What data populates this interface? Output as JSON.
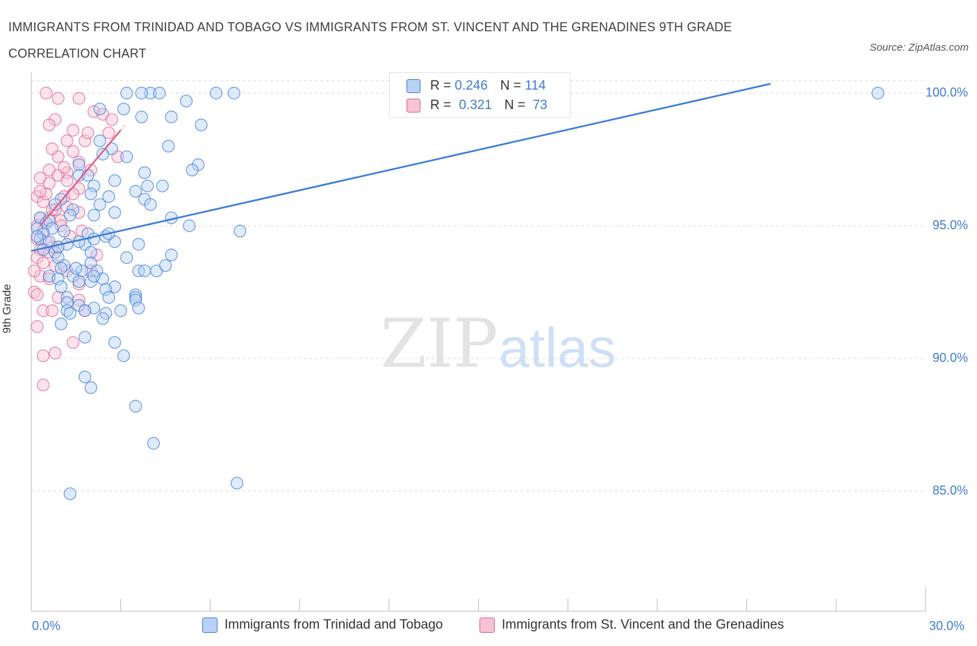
{
  "title": "IMMIGRANTS FROM TRINIDAD AND TOBAGO VS IMMIGRANTS FROM ST. VINCENT AND THE GRENADINES 9TH GRADE CORRELATION CHART",
  "source": "Source: ZipAtlas.com",
  "watermark": {
    "zip": "ZIP",
    "atlas": "atlas"
  },
  "colors": {
    "blue": "#3d7dd8",
    "blue_fill": "#b9d1f4",
    "pink": "#e0628c",
    "pink_fill": "#f6c4d4",
    "grid": "#d8d8d8"
  },
  "legend": {
    "rows": [
      {
        "r_label": "R = ",
        "r_value": "0.246",
        "n_label": "N = ",
        "n_value": "114"
      },
      {
        "r_label": "R = ",
        "r_value": "0.321",
        "n_label": "N = ",
        "n_value": " 73"
      }
    ]
  },
  "chart_data": {
    "type": "scatter",
    "title": "IMMIGRANTS FROM TRINIDAD AND TOBAGO VS IMMIGRANTS FROM ST. VINCENT AND THE GRENADINES 9TH GRADE CORRELATION CHART",
    "xlabel": "",
    "ylabel": "9th Grade",
    "xlim": [
      0,
      30
    ],
    "ylim": [
      80,
      100.4
    ],
    "x_tick_labels": [
      "0.0%",
      "30.0%"
    ],
    "y_ticks": [
      85,
      90,
      95,
      100
    ],
    "y_tick_labels": [
      "85.0%",
      "90.0%",
      "95.0%",
      "100.0%"
    ],
    "series": [
      {
        "name": "Immigrants from Trinidad and Tobago",
        "R": 0.246,
        "N": 114,
        "trend": {
          "x0": 0,
          "y0": 94.05,
          "x1": 24.8,
          "y1": 100.35
        },
        "points": [
          [
            3.2,
            100
          ],
          [
            4.0,
            100
          ],
          [
            4.3,
            100
          ],
          [
            6.2,
            100
          ],
          [
            6.8,
            100
          ],
          [
            28.4,
            100
          ],
          [
            2.3,
            99.4
          ],
          [
            3.1,
            99.4
          ],
          [
            3.7,
            99.1
          ],
          [
            4.7,
            99.1
          ],
          [
            5.2,
            99.7
          ],
          [
            3.7,
            100
          ],
          [
            2.3,
            98.2
          ],
          [
            2.7,
            97.9
          ],
          [
            2.4,
            97.7
          ],
          [
            3.2,
            97.6
          ],
          [
            5.6,
            97.3
          ],
          [
            1.6,
            97.3
          ],
          [
            1.6,
            96.9
          ],
          [
            1.9,
            96.9
          ],
          [
            3.8,
            97.0
          ],
          [
            2.1,
            96.5
          ],
          [
            2.8,
            96.7
          ],
          [
            4.4,
            96.5
          ],
          [
            3.5,
            96.3
          ],
          [
            2.0,
            96.2
          ],
          [
            2.6,
            96.1
          ],
          [
            3.8,
            96.0
          ],
          [
            4.0,
            95.8
          ],
          [
            1.0,
            96.0
          ],
          [
            0.8,
            95.8
          ],
          [
            1.4,
            95.6
          ],
          [
            1.3,
            95.4
          ],
          [
            2.1,
            95.4
          ],
          [
            2.8,
            95.5
          ],
          [
            4.7,
            95.3
          ],
          [
            5.3,
            95.0
          ],
          [
            7.0,
            94.8
          ],
          [
            0.3,
            95.3
          ],
          [
            0.5,
            95.1
          ],
          [
            0.6,
            95.2
          ],
          [
            0.2,
            94.9
          ],
          [
            0.7,
            94.9
          ],
          [
            0.4,
            94.7
          ],
          [
            1.1,
            94.8
          ],
          [
            1.9,
            94.7
          ],
          [
            2.5,
            94.6
          ],
          [
            2.8,
            94.4
          ],
          [
            3.6,
            94.3
          ],
          [
            0.3,
            94.5
          ],
          [
            0.6,
            94.4
          ],
          [
            1.2,
            94.3
          ],
          [
            1.8,
            94.3
          ],
          [
            2.1,
            94.5
          ],
          [
            0.4,
            94.1
          ],
          [
            0.8,
            94.0
          ],
          [
            0.9,
            93.8
          ],
          [
            1.6,
            94.4
          ],
          [
            2.0,
            94.0
          ],
          [
            3.2,
            93.8
          ],
          [
            4.7,
            93.9
          ],
          [
            2.0,
            93.6
          ],
          [
            1.1,
            93.5
          ],
          [
            1.0,
            93.4
          ],
          [
            1.7,
            93.3
          ],
          [
            2.2,
            93.3
          ],
          [
            2.4,
            93.0
          ],
          [
            3.6,
            93.3
          ],
          [
            3.8,
            93.3
          ],
          [
            4.2,
            93.3
          ],
          [
            4.5,
            93.5
          ],
          [
            0.6,
            93.1
          ],
          [
            0.9,
            93.0
          ],
          [
            1.4,
            93.1
          ],
          [
            1.6,
            92.9
          ],
          [
            2.0,
            92.9
          ],
          [
            2.8,
            92.7
          ],
          [
            2.5,
            92.6
          ],
          [
            3.5,
            92.4
          ],
          [
            3.5,
            92.3
          ],
          [
            1.2,
            92.3
          ],
          [
            1.2,
            92.1
          ],
          [
            1.6,
            92.0
          ],
          [
            2.1,
            91.9
          ],
          [
            3.5,
            92.2
          ],
          [
            1.2,
            91.8
          ],
          [
            1.3,
            91.7
          ],
          [
            1.8,
            91.8
          ],
          [
            2.5,
            91.7
          ],
          [
            3.0,
            91.8
          ],
          [
            3.6,
            91.9
          ],
          [
            1.0,
            91.3
          ],
          [
            2.4,
            91.5
          ],
          [
            1.8,
            90.8
          ],
          [
            2.8,
            90.6
          ],
          [
            3.1,
            90.1
          ],
          [
            1.8,
            89.3
          ],
          [
            2.0,
            88.9
          ],
          [
            3.5,
            88.2
          ],
          [
            4.1,
            86.8
          ],
          [
            1.3,
            84.9
          ],
          [
            6.9,
            85.3
          ],
          [
            5.7,
            98.8
          ],
          [
            4.6,
            98.0
          ],
          [
            5.4,
            97.1
          ],
          [
            3.9,
            96.5
          ],
          [
            2.6,
            94.7
          ],
          [
            1.5,
            93.4
          ],
          [
            2.6,
            92.3
          ],
          [
            2.1,
            93.1
          ],
          [
            0.9,
            94.2
          ],
          [
            0.2,
            94.6
          ],
          [
            1.0,
            92.7
          ],
          [
            2.3,
            95.8
          ]
        ]
      },
      {
        "name": "Immigrants from St. Vincent and the Grenadines",
        "R": 0.321,
        "N": 73,
        "trend": {
          "x0": 0.3,
          "y0": 95.0,
          "x1": 3.0,
          "y1": 98.6
        },
        "points": [
          [
            0.5,
            100
          ],
          [
            0.9,
            99.8
          ],
          [
            1.6,
            99.8
          ],
          [
            2.1,
            99.3
          ],
          [
            2.4,
            99.2
          ],
          [
            0.8,
            99.0
          ],
          [
            2.7,
            99.0
          ],
          [
            0.6,
            98.8
          ],
          [
            1.4,
            98.6
          ],
          [
            1.2,
            98.2
          ],
          [
            1.8,
            98.2
          ],
          [
            0.7,
            97.9
          ],
          [
            1.4,
            97.8
          ],
          [
            0.9,
            97.6
          ],
          [
            1.6,
            97.4
          ],
          [
            0.6,
            97.1
          ],
          [
            1.2,
            97.0
          ],
          [
            0.9,
            96.9
          ],
          [
            1.2,
            96.7
          ],
          [
            0.3,
            96.8
          ],
          [
            0.6,
            96.6
          ],
          [
            1.6,
            96.4
          ],
          [
            0.2,
            96.1
          ],
          [
            1.1,
            96.1
          ],
          [
            0.4,
            95.9
          ],
          [
            0.8,
            95.6
          ],
          [
            1.2,
            95.7
          ],
          [
            1.6,
            95.5
          ],
          [
            0.3,
            95.3
          ],
          [
            0.6,
            95.3
          ],
          [
            1.0,
            95.2
          ],
          [
            0.2,
            95.0
          ],
          [
            0.4,
            94.8
          ],
          [
            1.7,
            94.8
          ],
          [
            0.2,
            94.5
          ],
          [
            0.5,
            94.4
          ],
          [
            0.9,
            94.2
          ],
          [
            0.3,
            94.1
          ],
          [
            0.6,
            94.0
          ],
          [
            0.2,
            93.8
          ],
          [
            0.4,
            93.6
          ],
          [
            0.8,
            93.5
          ],
          [
            1.2,
            93.3
          ],
          [
            2.0,
            93.3
          ],
          [
            0.3,
            93.1
          ],
          [
            0.6,
            93.0
          ],
          [
            1.6,
            92.8
          ],
          [
            0.1,
            92.5
          ],
          [
            0.2,
            92.4
          ],
          [
            0.9,
            92.3
          ],
          [
            1.6,
            92.2
          ],
          [
            0.4,
            91.8
          ],
          [
            0.7,
            91.8
          ],
          [
            1.8,
            91.8
          ],
          [
            0.2,
            91.2
          ],
          [
            1.4,
            90.6
          ],
          [
            0.4,
            90.1
          ],
          [
            0.8,
            90.2
          ],
          [
            0.4,
            89.0
          ],
          [
            2.6,
            98.5
          ],
          [
            2.0,
            97.1
          ],
          [
            1.3,
            94.6
          ],
          [
            0.7,
            94.2
          ],
          [
            1.1,
            97.2
          ],
          [
            0.5,
            96.2
          ],
          [
            1.9,
            98.5
          ],
          [
            0.1,
            93.3
          ],
          [
            1.0,
            95.0
          ],
          [
            0.3,
            96.3
          ],
          [
            2.2,
            93.9
          ],
          [
            0.7,
            95.6
          ],
          [
            1.4,
            96.2
          ],
          [
            2.9,
            97.6
          ]
        ]
      }
    ]
  }
}
